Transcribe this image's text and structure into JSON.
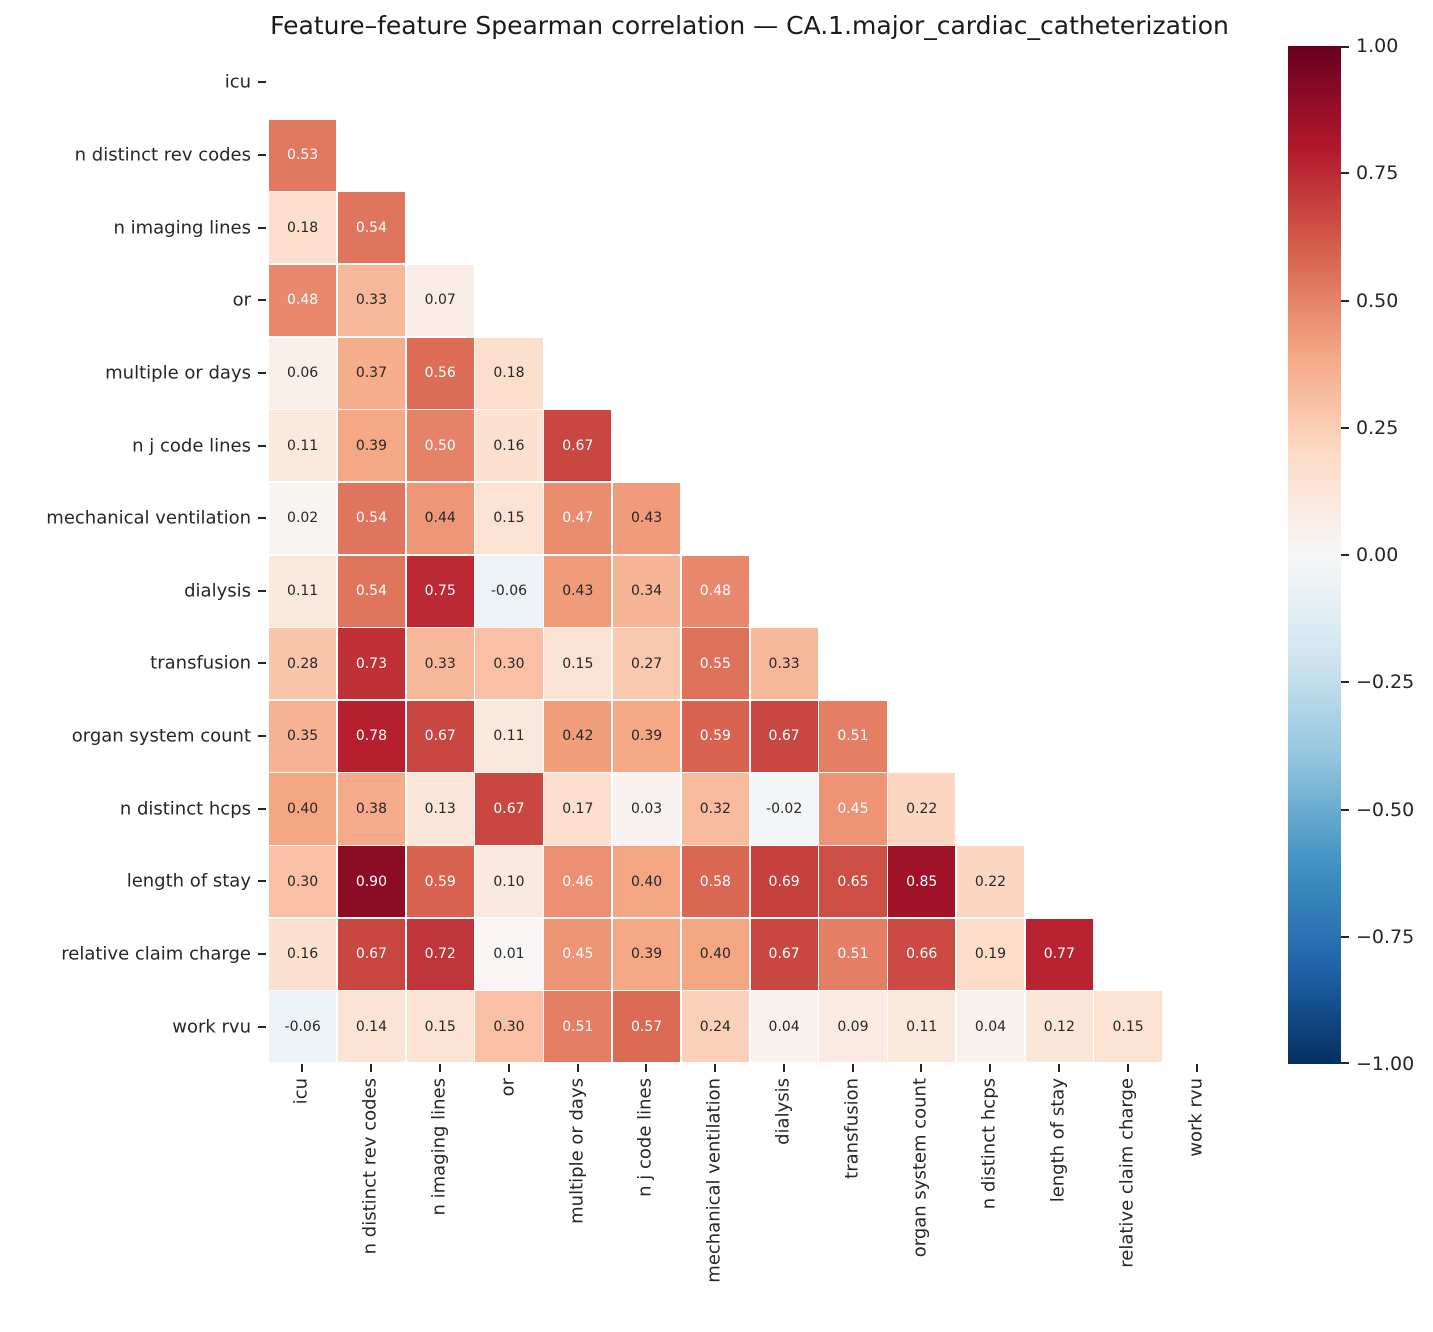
{
  "title": "Feature–feature Spearman correlation — CA.1.major_cardiac_catheterization",
  "chart_data": {
    "type": "heatmap",
    "title": "Feature–feature Spearman correlation — CA.1.major_cardiac_catheterization",
    "labels": [
      "icu",
      "n distinct rev codes",
      "n imaging lines",
      "or",
      "multiple or days",
      "n j code lines",
      "mechanical ventilation",
      "dialysis",
      "transfusion",
      "organ system count",
      "n distinct hcps",
      "length of stay",
      "relative claim charge",
      "work rvu"
    ],
    "matrix_lower_triangle": [
      [],
      [
        0.53
      ],
      [
        0.18,
        0.54
      ],
      [
        0.48,
        0.33,
        0.07
      ],
      [
        0.06,
        0.37,
        0.56,
        0.18
      ],
      [
        0.11,
        0.39,
        0.5,
        0.16,
        0.67
      ],
      [
        0.02,
        0.54,
        0.44,
        0.15,
        0.47,
        0.43
      ],
      [
        0.11,
        0.54,
        0.75,
        -0.06,
        0.43,
        0.34,
        0.48
      ],
      [
        0.28,
        0.73,
        0.33,
        0.3,
        0.15,
        0.27,
        0.55,
        0.33
      ],
      [
        0.35,
        0.78,
        0.67,
        0.11,
        0.42,
        0.39,
        0.59,
        0.67,
        0.51
      ],
      [
        0.4,
        0.38,
        0.13,
        0.67,
        0.17,
        0.03,
        0.32,
        -0.02,
        0.45,
        0.22
      ],
      [
        0.3,
        0.9,
        0.59,
        0.1,
        0.46,
        0.4,
        0.58,
        0.69,
        0.65,
        0.85,
        0.22
      ],
      [
        0.16,
        0.67,
        0.72,
        0.01,
        0.45,
        0.39,
        0.4,
        0.67,
        0.51,
        0.66,
        0.19,
        0.77
      ],
      [
        -0.06,
        0.14,
        0.15,
        0.3,
        0.51,
        0.57,
        0.24,
        0.04,
        0.09,
        0.11,
        0.04,
        0.12,
        0.15
      ]
    ],
    "mask": "upper triangle including diagonal",
    "vmin": -1,
    "vmax": 1,
    "annotation_format": ".2f",
    "colormap_name": "RdBu_r",
    "colormap_anchors_low_to_high": [
      "#053061",
      "#2166ac",
      "#4393c3",
      "#92c5de",
      "#d1e5f0",
      "#f7f7f7",
      "#fddbc7",
      "#f4a582",
      "#d6604d",
      "#b2182b",
      "#67001f"
    ],
    "annotation_text_light": "#ffffff",
    "annotation_text_dark": "#262626",
    "colorbar": {
      "position": "right",
      "tick_values": [
        1.0,
        0.75,
        0.5,
        0.25,
        0.0,
        -0.25,
        -0.5,
        -0.75,
        -1.0
      ],
      "tick_labels": [
        "1.00",
        "0.75",
        "0.50",
        "0.25",
        "0.00",
        "−0.25",
        "−0.50",
        "−0.75",
        "−1.00"
      ]
    },
    "grid": false,
    "legend": false
  }
}
